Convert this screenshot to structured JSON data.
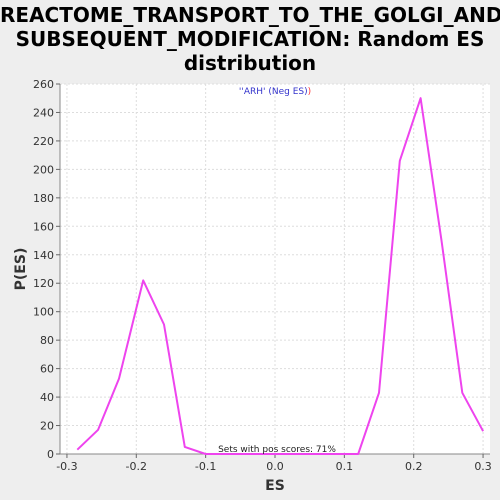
{
  "chart_data": {
    "type": "line",
    "title_lines": [
      "REACTOME_TRANSPORT_TO_THE_GOLGI_AND_",
      "SUBSEQUENT_MODIFICATION: Random ES",
      "distribution"
    ],
    "xlabel": "ES",
    "ylabel": "P(ES)",
    "xlim": [
      -0.31,
      0.31
    ],
    "ylim": [
      0,
      260
    ],
    "x_ticks": [
      -0.3,
      -0.2,
      -0.1,
      0.0,
      0.1,
      0.2,
      0.3
    ],
    "x_tick_labels": [
      "-0.3",
      "-0.2",
      "-0.1",
      "0.0",
      "0.1",
      "0.2",
      "0.3"
    ],
    "y_ticks": [
      0,
      20,
      40,
      60,
      80,
      100,
      120,
      140,
      160,
      180,
      200,
      220,
      240,
      260
    ],
    "grid": true,
    "legend": {
      "position": "top-center",
      "parts": [
        {
          "text": "''ARH' (Neg ES)",
          "color": "#3333cc"
        },
        {
          "text": ")",
          "color": "#ff3333"
        }
      ]
    },
    "annotation": "Sets with pos scores: 71%",
    "series": [
      {
        "color": "#ee44ee",
        "x": [
          -0.285,
          -0.255,
          -0.225,
          -0.19,
          -0.16,
          -0.13,
          -0.1,
          -0.065,
          -0.03,
          0.0,
          0.03,
          0.06,
          0.09,
          0.12,
          0.15,
          0.18,
          0.21,
          0.24,
          0.27,
          0.3
        ],
        "y": [
          3,
          17,
          53,
          122,
          91,
          5,
          0,
          0,
          0,
          0,
          0,
          0,
          0,
          0,
          43,
          206,
          250,
          150,
          43,
          16
        ]
      }
    ],
    "colors": {
      "plot_bg": "#ffffff",
      "page_bg": "#eeeeee",
      "grid": "#dddddd",
      "line": "#ee44ee"
    }
  }
}
